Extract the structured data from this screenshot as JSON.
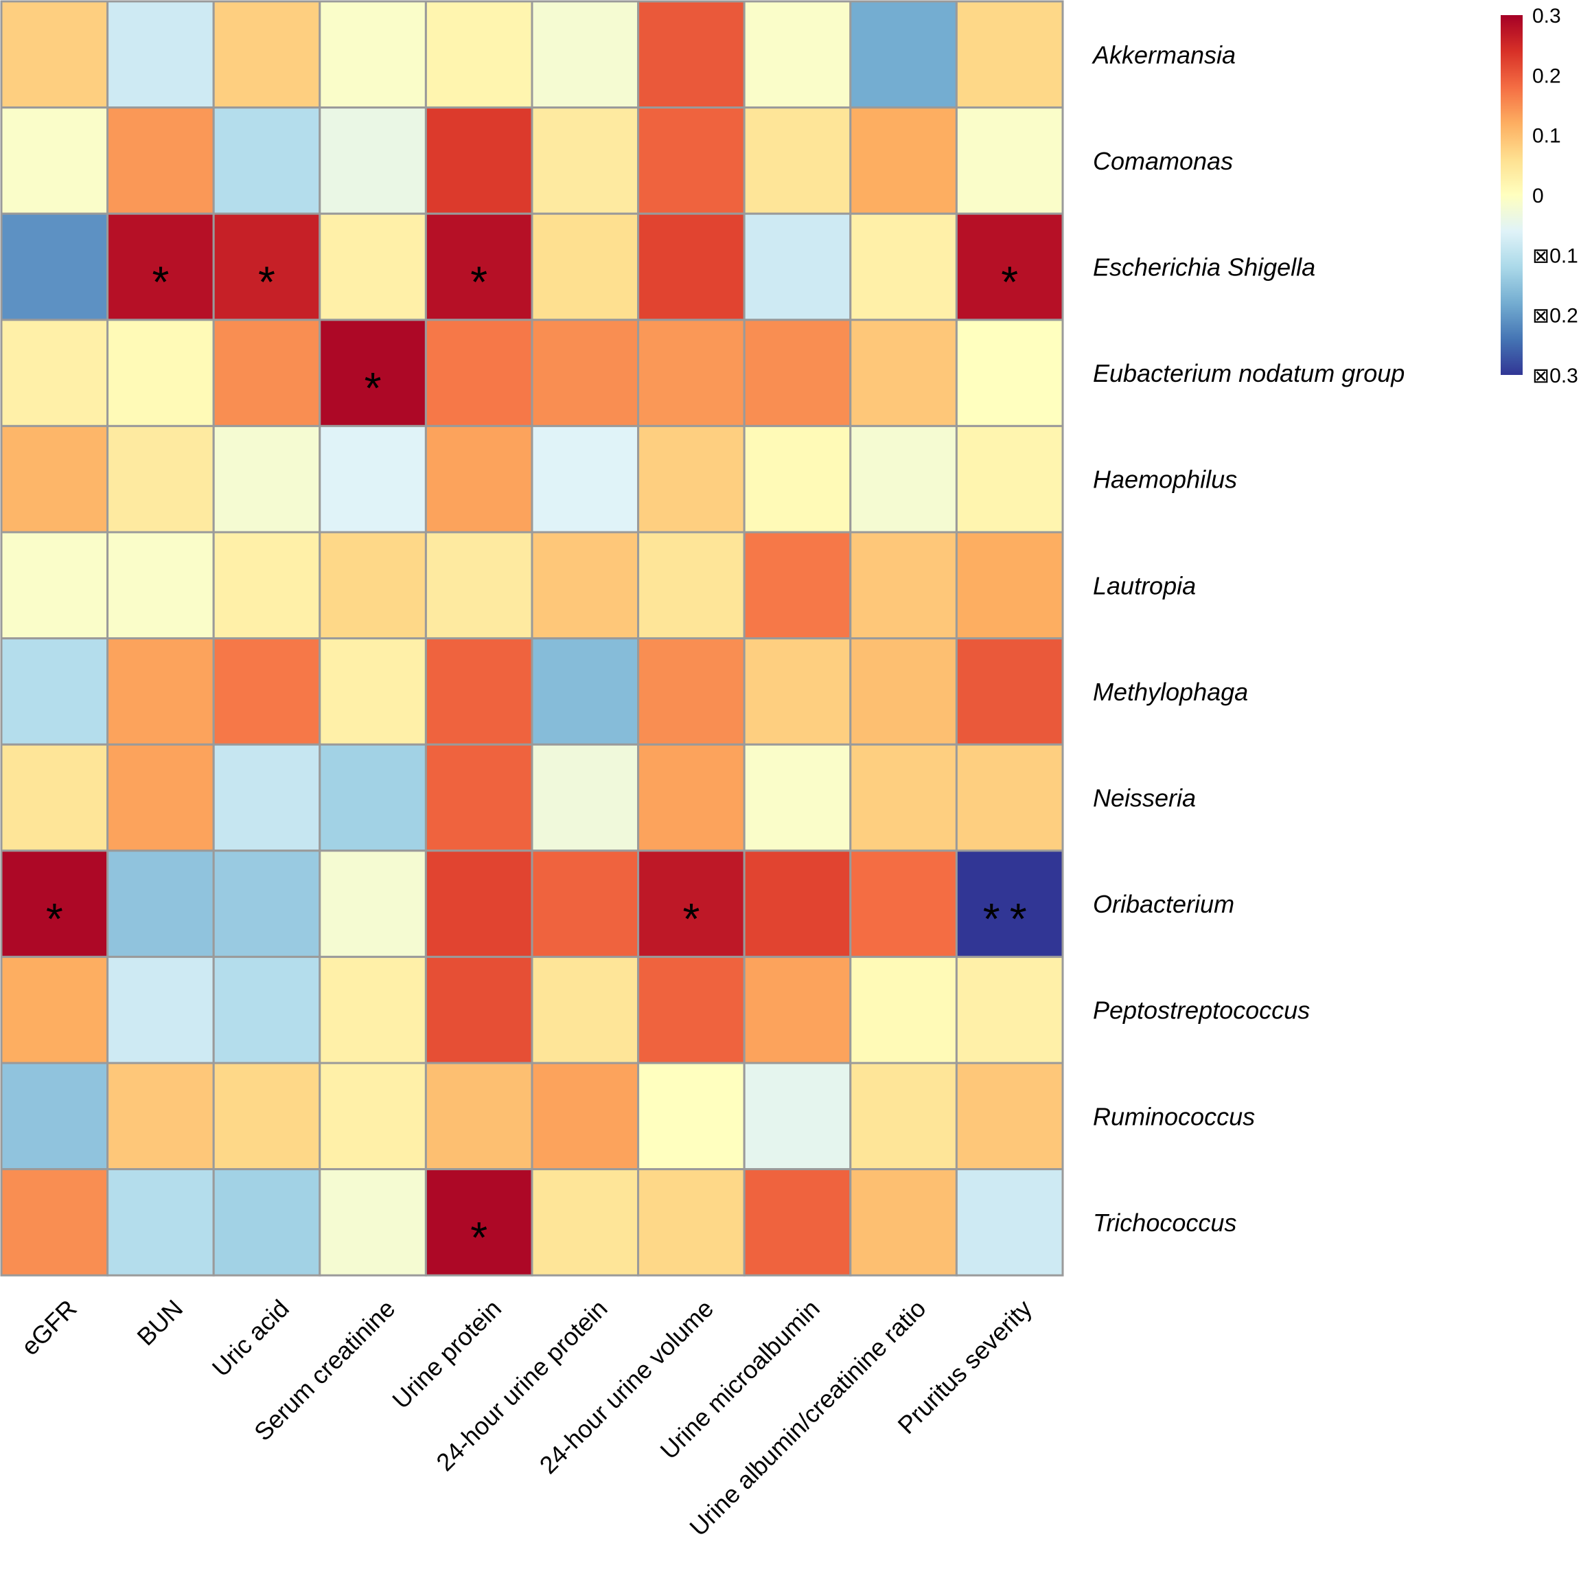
{
  "chart_data": {
    "type": "heatmap",
    "title": "",
    "rows": [
      "Akkermansia",
      "Comamonas",
      "Escherichia Shigella",
      "Eubacterium nodatum group",
      "Haemophilus",
      "Lautropia",
      "Methylophaga",
      "Neisseria",
      "Oribacterium",
      "Peptostreptococcus",
      "Ruminococcus",
      "Trichococcus"
    ],
    "columns": [
      "eGFR",
      "BUN",
      "Uric acid",
      "Serum creatinine",
      "Urine protein",
      "24-hour urine protein",
      "24-hour urine volume",
      "Urine microalbumin",
      "Urine albumin/creatinine ratio",
      "Pruritus severity"
    ],
    "values": [
      [
        0.08,
        -0.08,
        0.08,
        -0.01,
        0.02,
        -0.02,
        0.2,
        -0.01,
        -0.18,
        0.07
      ],
      [
        -0.01,
        0.14,
        -0.11,
        -0.04,
        0.23,
        0.04,
        0.19,
        0.05,
        0.12,
        -0.01
      ],
      [
        -0.21,
        0.28,
        0.26,
        0.03,
        0.28,
        0.06,
        0.22,
        -0.08,
        0.03,
        0.28
      ],
      [
        0.03,
        0.01,
        0.15,
        0.29,
        0.17,
        0.15,
        0.14,
        0.15,
        0.09,
        0.0
      ],
      [
        0.11,
        0.04,
        -0.02,
        -0.06,
        0.13,
        -0.06,
        0.08,
        0.01,
        -0.02,
        0.02
      ],
      [
        -0.01,
        -0.01,
        0.03,
        0.07,
        0.04,
        0.09,
        0.05,
        0.17,
        0.09,
        0.12
      ],
      [
        -0.11,
        0.13,
        0.17,
        0.03,
        0.19,
        -0.16,
        0.15,
        0.08,
        0.1,
        0.2
      ],
      [
        0.05,
        0.13,
        -0.09,
        -0.13,
        0.19,
        -0.03,
        0.13,
        -0.01,
        0.08,
        0.08
      ],
      [
        0.29,
        -0.15,
        -0.14,
        -0.02,
        0.22,
        0.19,
        0.27,
        0.22,
        0.18,
        -0.3
      ],
      [
        0.12,
        -0.08,
        -0.11,
        0.03,
        0.21,
        0.05,
        0.19,
        0.13,
        0.01,
        0.03
      ],
      [
        -0.15,
        0.09,
        0.07,
        0.03,
        0.1,
        0.13,
        0.0,
        -0.05,
        0.05,
        0.09
      ],
      [
        0.15,
        -0.11,
        -0.13,
        -0.02,
        0.29,
        0.05,
        0.07,
        0.19,
        0.1,
        -0.08
      ]
    ],
    "significance": [
      [
        "",
        "",
        "",
        "",
        "",
        "",
        "",
        "",
        "",
        ""
      ],
      [
        "",
        "",
        "",
        "",
        "",
        "",
        "",
        "",
        "",
        ""
      ],
      [
        "",
        "*",
        "*",
        "",
        "*",
        "",
        "",
        "",
        "",
        "*"
      ],
      [
        "",
        "",
        "",
        "*",
        "",
        "",
        "",
        "",
        "",
        ""
      ],
      [
        "",
        "",
        "",
        "",
        "",
        "",
        "",
        "",
        "",
        ""
      ],
      [
        "",
        "",
        "",
        "",
        "",
        "",
        "",
        "",
        "",
        ""
      ],
      [
        "",
        "",
        "",
        "",
        "",
        "",
        "",
        "",
        "",
        ""
      ],
      [
        "",
        "",
        "",
        "",
        "",
        "",
        "",
        "",
        "",
        ""
      ],
      [
        "*",
        "",
        "",
        "",
        "",
        "",
        "*",
        "",
        "",
        "**"
      ],
      [
        "",
        "",
        "",
        "",
        "",
        "",
        "",
        "",
        "",
        ""
      ],
      [
        "",
        "",
        "",
        "",
        "",
        "",
        "",
        "",
        "",
        ""
      ],
      [
        "",
        "",
        "",
        "",
        "*",
        "",
        "",
        "",
        "",
        ""
      ]
    ],
    "color_scale": {
      "min": -0.3,
      "max": 0.3,
      "stops": [
        "#313695",
        "#4575b4",
        "#74add1",
        "#abd9e9",
        "#e0f3f8",
        "#ffffbf",
        "#fee090",
        "#fdae61",
        "#f46d43",
        "#d73027",
        "#a50026"
      ]
    },
    "legend": {
      "position": "top-right",
      "ticks": [
        {
          "value": 0.3,
          "label": "0.3"
        },
        {
          "value": 0.2,
          "label": "0.2"
        },
        {
          "value": 0.1,
          "label": "0.1"
        },
        {
          "value": 0.0,
          "label": "0"
        },
        {
          "value": -0.1,
          "label": "⊠0.1"
        },
        {
          "value": -0.2,
          "label": "⊠0.2"
        },
        {
          "value": -0.3,
          "label": "⊠0.3"
        }
      ]
    }
  }
}
